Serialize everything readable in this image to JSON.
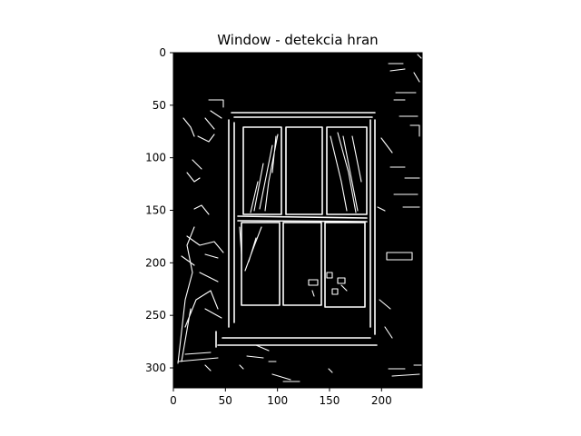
{
  "chart_data": {
    "type": "image",
    "title": "Window - detekcia hran",
    "xlim": [
      0,
      239
    ],
    "ylim": [
      319,
      0
    ],
    "x_ticks": [
      0,
      50,
      100,
      150,
      200
    ],
    "y_ticks": [
      0,
      50,
      100,
      150,
      200,
      250,
      300
    ],
    "image_description": "binary edge map (white edges on black) of a window with a six-pane frame and curtains",
    "colors": {
      "background": "#000000",
      "edges": "#ffffff",
      "axes": "#000000"
    }
  }
}
